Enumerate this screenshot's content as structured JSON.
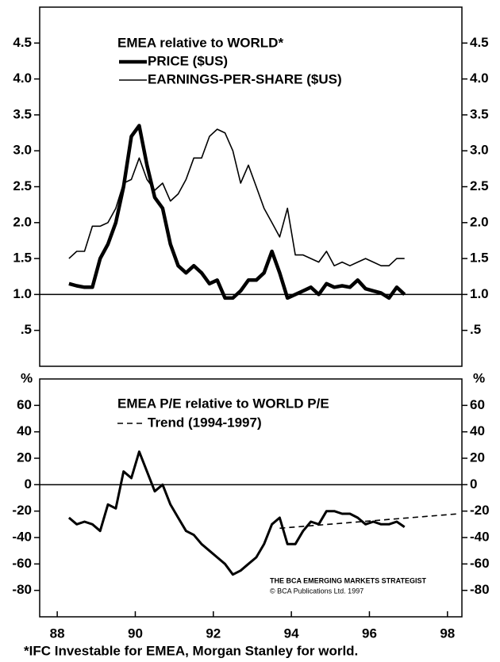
{
  "chart_data": [
    {
      "type": "line",
      "title": "EMEA relative to WORLD*",
      "x": [
        88.3,
        88.5,
        88.7,
        88.9,
        89.1,
        89.3,
        89.5,
        89.7,
        89.9,
        90.1,
        90.3,
        90.5,
        90.7,
        90.9,
        91.1,
        91.3,
        91.5,
        91.7,
        91.9,
        92.1,
        92.3,
        92.5,
        92.7,
        92.9,
        93.1,
        93.3,
        93.5,
        93.7,
        93.9,
        94.1,
        94.3,
        94.5,
        94.7,
        94.9,
        95.1,
        95.3,
        95.5,
        95.7,
        95.9,
        96.1,
        96.3,
        96.5,
        96.7,
        96.9
      ],
      "series": [
        {
          "name": "PRICE ($US)",
          "color": "#000000",
          "line_width": 4.5,
          "values": [
            1.15,
            1.12,
            1.1,
            1.1,
            1.5,
            1.7,
            2.0,
            2.5,
            3.2,
            3.35,
            2.8,
            2.35,
            2.2,
            1.7,
            1.4,
            1.3,
            1.4,
            1.3,
            1.15,
            1.2,
            0.95,
            0.95,
            1.05,
            1.2,
            1.2,
            1.3,
            1.6,
            1.3,
            0.95,
            1.0,
            1.05,
            1.1,
            1.0,
            1.15,
            1.1,
            1.12,
            1.1,
            1.2,
            1.08,
            1.05,
            1.02,
            0.95,
            1.1,
            1.0
          ]
        },
        {
          "name": "EARNINGS-PER-SHARE ($US)",
          "color": "#000000",
          "line_width": 1.6,
          "values": [
            1.5,
            1.6,
            1.6,
            1.95,
            1.95,
            2.0,
            2.2,
            2.55,
            2.6,
            2.9,
            2.6,
            2.45,
            2.55,
            2.3,
            2.4,
            2.6,
            2.9,
            2.9,
            3.2,
            3.3,
            3.25,
            3.0,
            2.55,
            2.8,
            2.5,
            2.2,
            2.0,
            1.8,
            2.2,
            1.55,
            1.55,
            1.5,
            1.45,
            1.6,
            1.4,
            1.45,
            1.4,
            1.45,
            1.5,
            1.45,
            1.4,
            1.4,
            1.5,
            1.5
          ]
        }
      ],
      "xlim": [
        87.55,
        98.37
      ],
      "ylim": [
        0,
        5
      ],
      "yticks": [
        {
          "value": 0.5,
          "label": ".5"
        },
        {
          "value": 1.0,
          "label": "1.0"
        },
        1.5,
        {
          "value": 2.0,
          "label": "2.0"
        },
        2.5,
        {
          "value": 3.0,
          "label": "3.0"
        },
        3.5,
        {
          "value": 4.0,
          "label": "4.0"
        },
        4.5
      ],
      "reference_line": 1.0
    },
    {
      "type": "line",
      "title": "EMEA P/E relative to WORLD P/E",
      "ylabel": "%",
      "x": [
        88.3,
        88.5,
        88.7,
        88.9,
        89.1,
        89.3,
        89.5,
        89.7,
        89.9,
        90.1,
        90.3,
        90.5,
        90.7,
        90.9,
        91.1,
        91.3,
        91.5,
        91.7,
        91.9,
        92.1,
        92.3,
        92.5,
        92.7,
        92.9,
        93.1,
        93.3,
        93.5,
        93.7,
        93.9,
        94.1,
        94.3,
        94.5,
        94.7,
        94.9,
        95.1,
        95.3,
        95.5,
        95.7,
        95.9,
        96.1,
        96.3,
        96.5,
        96.7,
        96.9
      ],
      "series": [
        {
          "name": "EMEA P/E",
          "color": "#000000",
          "line_width": 3,
          "values": [
            -25,
            -30,
            -28,
            -30,
            -35,
            -15,
            -18,
            10,
            5,
            25,
            10,
            -5,
            0,
            -15,
            -25,
            -35,
            -38,
            -45,
            -50,
            -55,
            -60,
            -68,
            -65,
            -60,
            -55,
            -45,
            -30,
            -25,
            -45,
            -45,
            -35,
            -28,
            -30,
            -20,
            -20,
            -22,
            -22,
            -25,
            -30,
            -28,
            -30,
            -30,
            -28,
            -32
          ]
        },
        {
          "name": "Trend (1994-1997)",
          "color": "#000000",
          "line_width": 1.6,
          "dashed": true,
          "x": [
            93.7,
            98.3
          ],
          "values": [
            -33,
            -22
          ]
        }
      ],
      "xlim": [
        87.55,
        98.37
      ],
      "ylim": [
        -100,
        80
      ],
      "xticks": [
        88,
        90,
        92,
        94,
        96,
        98
      ],
      "yticks": [
        -80,
        -60,
        -40,
        -20,
        0,
        20,
        40,
        60
      ],
      "reference_line": 0,
      "source": [
        "THE BCA EMERGING MARKETS STRATEGIST",
        "© BCA Publications Ltd. 1997"
      ]
    }
  ],
  "footnote": "*IFC Investable for EMEA, Morgan Stanley for world."
}
